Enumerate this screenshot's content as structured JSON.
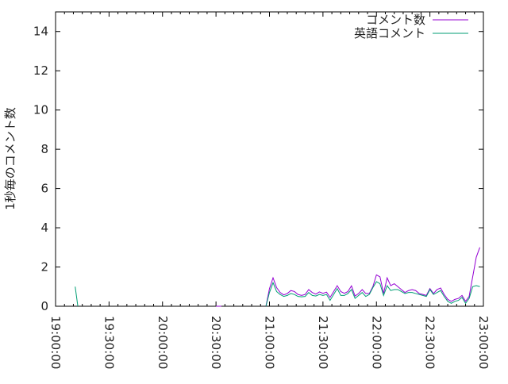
{
  "chart_data": {
    "type": "line",
    "title": "",
    "xlabel": "",
    "ylabel": "1秒毎のコメント数",
    "xlim": [
      "19:00:00",
      "23:00:00"
    ],
    "ylim": [
      0,
      15
    ],
    "x_ticks": [
      "19:00:00",
      "19:30:00",
      "20:00:00",
      "20:30:00",
      "21:00:00",
      "21:30:00",
      "22:00:00",
      "22:30:00",
      "23:00:00"
    ],
    "y_ticks": [
      0,
      2,
      4,
      6,
      8,
      10,
      12,
      14
    ],
    "grid": false,
    "legend_position": "top-right",
    "main_series_start": "20:58:00",
    "main_series_step_minutes": 2,
    "series": [
      {
        "name": "コメント数",
        "color": "#9400d3",
        "extra_segments": [
          [
            [
              "20:30:00",
              0
            ],
            [
              "20:33:00",
              0
            ]
          ]
        ],
        "values": [
          0,
          0.9,
          1.45,
          0.95,
          0.7,
          0.58,
          0.65,
          0.8,
          0.75,
          0.6,
          0.55,
          0.6,
          0.85,
          0.7,
          0.62,
          0.73,
          0.66,
          0.72,
          0.45,
          0.75,
          1.05,
          0.75,
          0.66,
          0.75,
          1.04,
          0.52,
          0.65,
          0.85,
          0.65,
          0.65,
          1.0,
          1.6,
          1.5,
          0.65,
          1.45,
          1.05,
          1.15,
          1.0,
          0.85,
          0.7,
          0.8,
          0.85,
          0.8,
          0.65,
          0.6,
          0.55,
          0.9,
          0.65,
          0.85,
          0.93,
          0.6,
          0.35,
          0.25,
          0.35,
          0.4,
          0.55,
          0.25,
          0.5,
          1.5,
          2.5,
          3.0
        ]
      },
      {
        "name": "英語コメント",
        "color": "#009e73",
        "extra_segments": [
          [
            [
              "19:11:00",
              1
            ],
            [
              "19:12:30",
              0
            ]
          ]
        ],
        "values": [
          0,
          0.7,
          1.2,
          0.75,
          0.6,
          0.5,
          0.55,
          0.65,
          0.6,
          0.5,
          0.48,
          0.5,
          0.7,
          0.55,
          0.52,
          0.6,
          0.55,
          0.6,
          0.3,
          0.6,
          0.9,
          0.55,
          0.55,
          0.65,
          0.85,
          0.4,
          0.55,
          0.7,
          0.5,
          0.6,
          0.95,
          1.25,
          1.15,
          0.55,
          1.05,
          0.8,
          0.85,
          0.85,
          0.75,
          0.65,
          0.7,
          0.7,
          0.65,
          0.6,
          0.55,
          0.5,
          0.85,
          0.6,
          0.7,
          0.8,
          0.5,
          0.25,
          0.15,
          0.25,
          0.3,
          0.45,
          0.15,
          0.4,
          1.0,
          1.05,
          1.0
        ]
      }
    ]
  }
}
